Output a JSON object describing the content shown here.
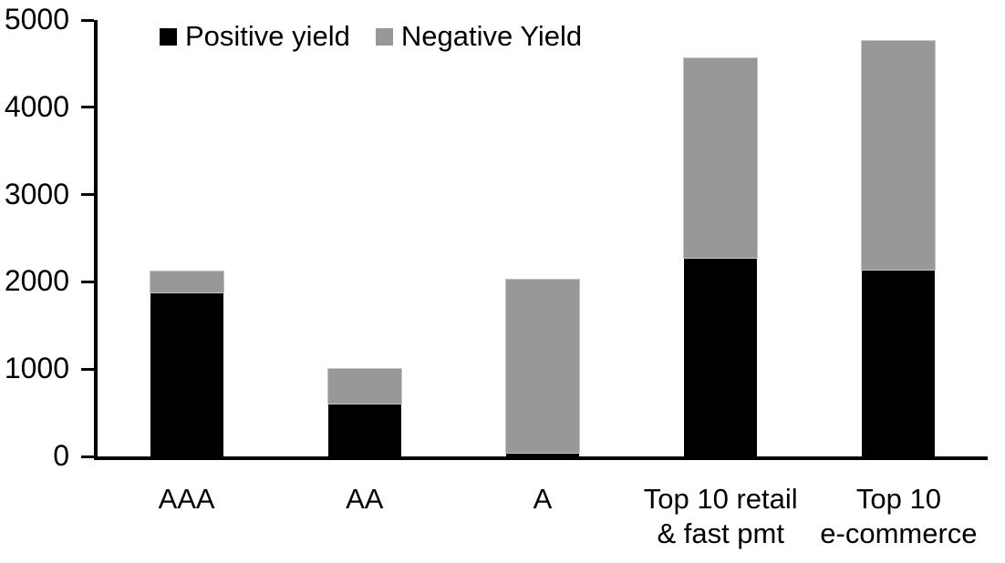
{
  "chart_data": {
    "type": "bar",
    "stacked": true,
    "title": "",
    "xlabel": "",
    "ylabel": "",
    "categories": [
      "AAA",
      "AA",
      "A",
      "Top 10 retail\n& fast pmt",
      "Top 10\ne-commerce"
    ],
    "series": [
      {
        "name": "Positive yield",
        "color": "#000000",
        "values": [
          1880,
          610,
          40,
          2280,
          2140
        ]
      },
      {
        "name": "Negative Yield",
        "color": "#989898",
        "values": [
          240,
          390,
          1990,
          2280,
          2620
        ]
      }
    ],
    "ylim": [
      0,
      5000
    ],
    "yticks": [
      0,
      1000,
      2000,
      3000,
      4000,
      5000
    ],
    "legend_position": "top-left-inside",
    "grid": false,
    "axis_color": "#000000",
    "background_color": "#ffffff"
  }
}
